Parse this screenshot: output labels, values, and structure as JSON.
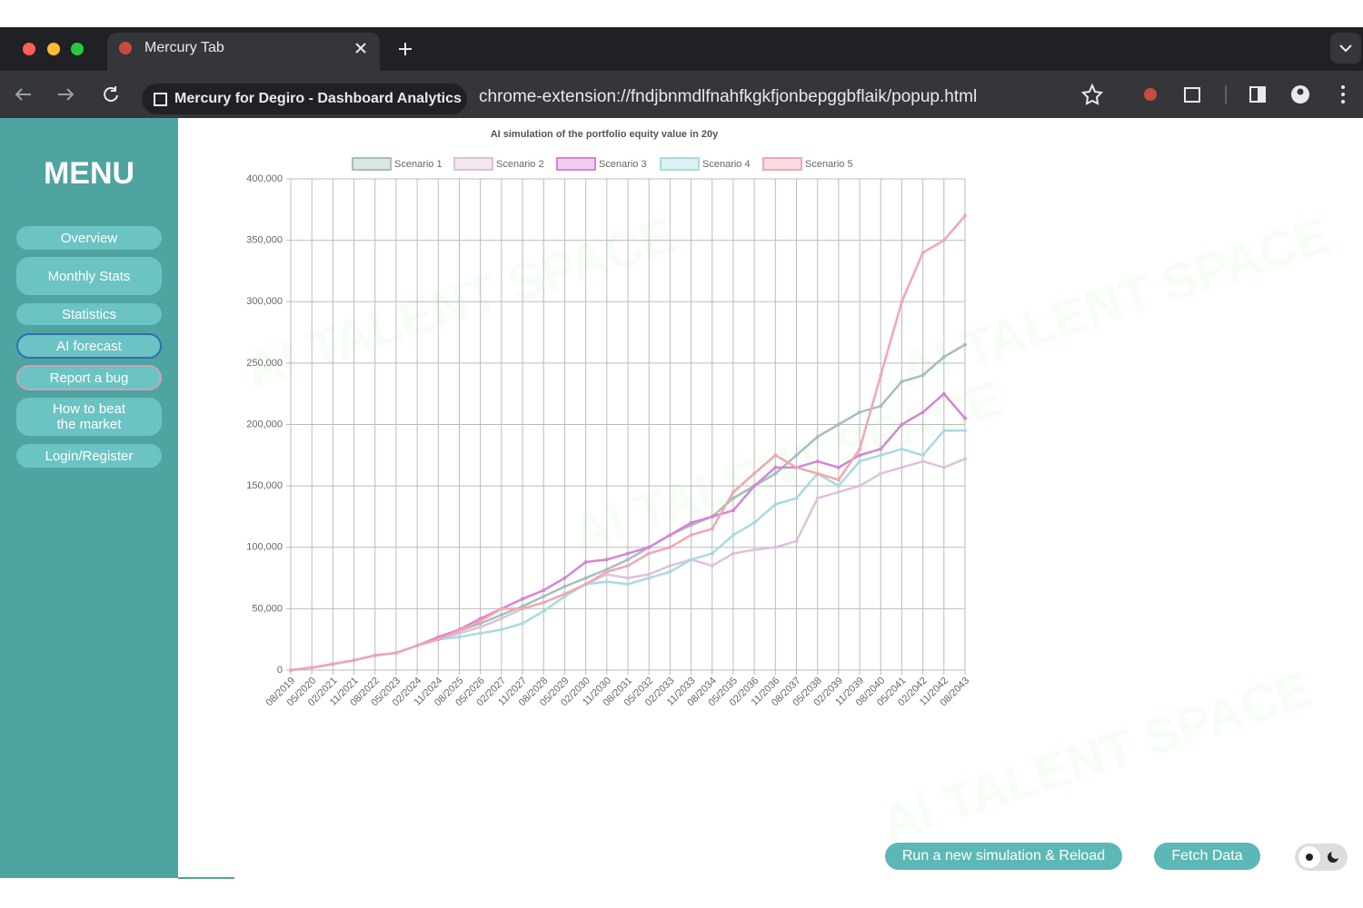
{
  "browser": {
    "tab_title": "Mercury Tab",
    "site_name": "Mercury for Degiro - Dashboard Analytics",
    "url": "chrome-extension://fndjbnmdlfnahfkgkfjonbepggbflaik/popup.html"
  },
  "watermark": "AI TALENT SPACE",
  "menu": {
    "title": "MENU",
    "items": [
      "Overview",
      "Monthly Stats",
      "Statistics",
      "AI forecast",
      "Report a bug",
      "How to beat the market",
      "Login/Register"
    ]
  },
  "buttons": [
    "Run a new simulation & Reload",
    "Fetch Data"
  ],
  "chart_data": {
    "type": "line",
    "title": "AI simulation of the portfolio equity value in 20y",
    "categories": [
      "08/2019",
      "05/2020",
      "02/2021",
      "11/2021",
      "08/2022",
      "05/2023",
      "02/2024",
      "11/2024",
      "08/2025",
      "05/2026",
      "02/2027",
      "11/2027",
      "08/2028",
      "05/2029",
      "02/2030",
      "11/2030",
      "08/2031",
      "05/2032",
      "02/2033",
      "11/2033",
      "08/2034",
      "05/2035",
      "02/2036",
      "11/2036",
      "08/2037",
      "05/2038",
      "02/2039",
      "11/2039",
      "08/2040",
      "05/2041",
      "02/2042",
      "11/2042",
      "08/2043"
    ],
    "series": [
      {
        "name": "Scenario 1",
        "color": "#a3bfbc",
        "values": [
          0,
          2000,
          5000,
          8000,
          12000,
          14000,
          20000,
          25000,
          32000,
          38000,
          45000,
          52000,
          60000,
          68000,
          75000,
          82000,
          90000,
          100000,
          110000,
          118000,
          125000,
          140000,
          150000,
          160000,
          175000,
          190000,
          200000,
          210000,
          215000,
          235000,
          240000,
          255000,
          265000
        ]
      },
      {
        "name": "Scenario 2",
        "color": "#dcc2dc",
        "values": [
          0,
          2000,
          5000,
          8000,
          12000,
          14000,
          20000,
          25000,
          30000,
          35000,
          42000,
          50000,
          55000,
          62000,
          70000,
          78000,
          75000,
          78000,
          85000,
          90000,
          85000,
          95000,
          98000,
          100000,
          105000,
          140000,
          145000,
          150000,
          160000,
          165000,
          170000,
          165000,
          172000
        ]
      },
      {
        "name": "Scenario 3",
        "color": "#d884d6",
        "values": [
          0,
          2000,
          5000,
          8000,
          12000,
          14000,
          20000,
          27000,
          33000,
          42000,
          50000,
          58000,
          65000,
          75000,
          88000,
          90000,
          95000,
          100000,
          110000,
          120000,
          125000,
          130000,
          150000,
          165000,
          165000,
          170000,
          165000,
          175000,
          180000,
          200000,
          210000,
          225000,
          205000
        ]
      },
      {
        "name": "Scenario 4",
        "color": "#a7dbe0",
        "values": [
          0,
          2000,
          5000,
          8000,
          12000,
          14000,
          20000,
          25000,
          27000,
          30000,
          33000,
          38000,
          48000,
          60000,
          70000,
          72000,
          70000,
          75000,
          80000,
          90000,
          95000,
          110000,
          120000,
          135000,
          140000,
          160000,
          150000,
          170000,
          175000,
          180000,
          175000,
          195000,
          195000
        ]
      },
      {
        "name": "Scenario 5",
        "color": "#f2a6b1",
        "values": [
          0,
          2000,
          5000,
          8000,
          12000,
          14000,
          20000,
          25000,
          32000,
          40000,
          50000,
          50000,
          55000,
          62000,
          70000,
          80000,
          85000,
          95000,
          100000,
          110000,
          115000,
          145000,
          160000,
          175000,
          165000,
          160000,
          155000,
          180000,
          240000,
          300000,
          340000,
          350000,
          370000
        ]
      }
    ],
    "ylim": [
      0,
      400000
    ],
    "yticks": [
      0,
      {
        "value": 50000,
        "label": "50,000"
      },
      {
        "value": 100000,
        "label": "100,000"
      },
      {
        "value": 150000,
        "label": "150,000"
      },
      {
        "value": 200000,
        "label": "200,000"
      },
      {
        "value": 250000,
        "label": "250,000"
      },
      {
        "value": 300000,
        "label": "300,000"
      },
      {
        "value": 350000,
        "label": "350,000"
      },
      {
        "value": 400000,
        "label": "400,000"
      }
    ],
    "grid": true
  }
}
